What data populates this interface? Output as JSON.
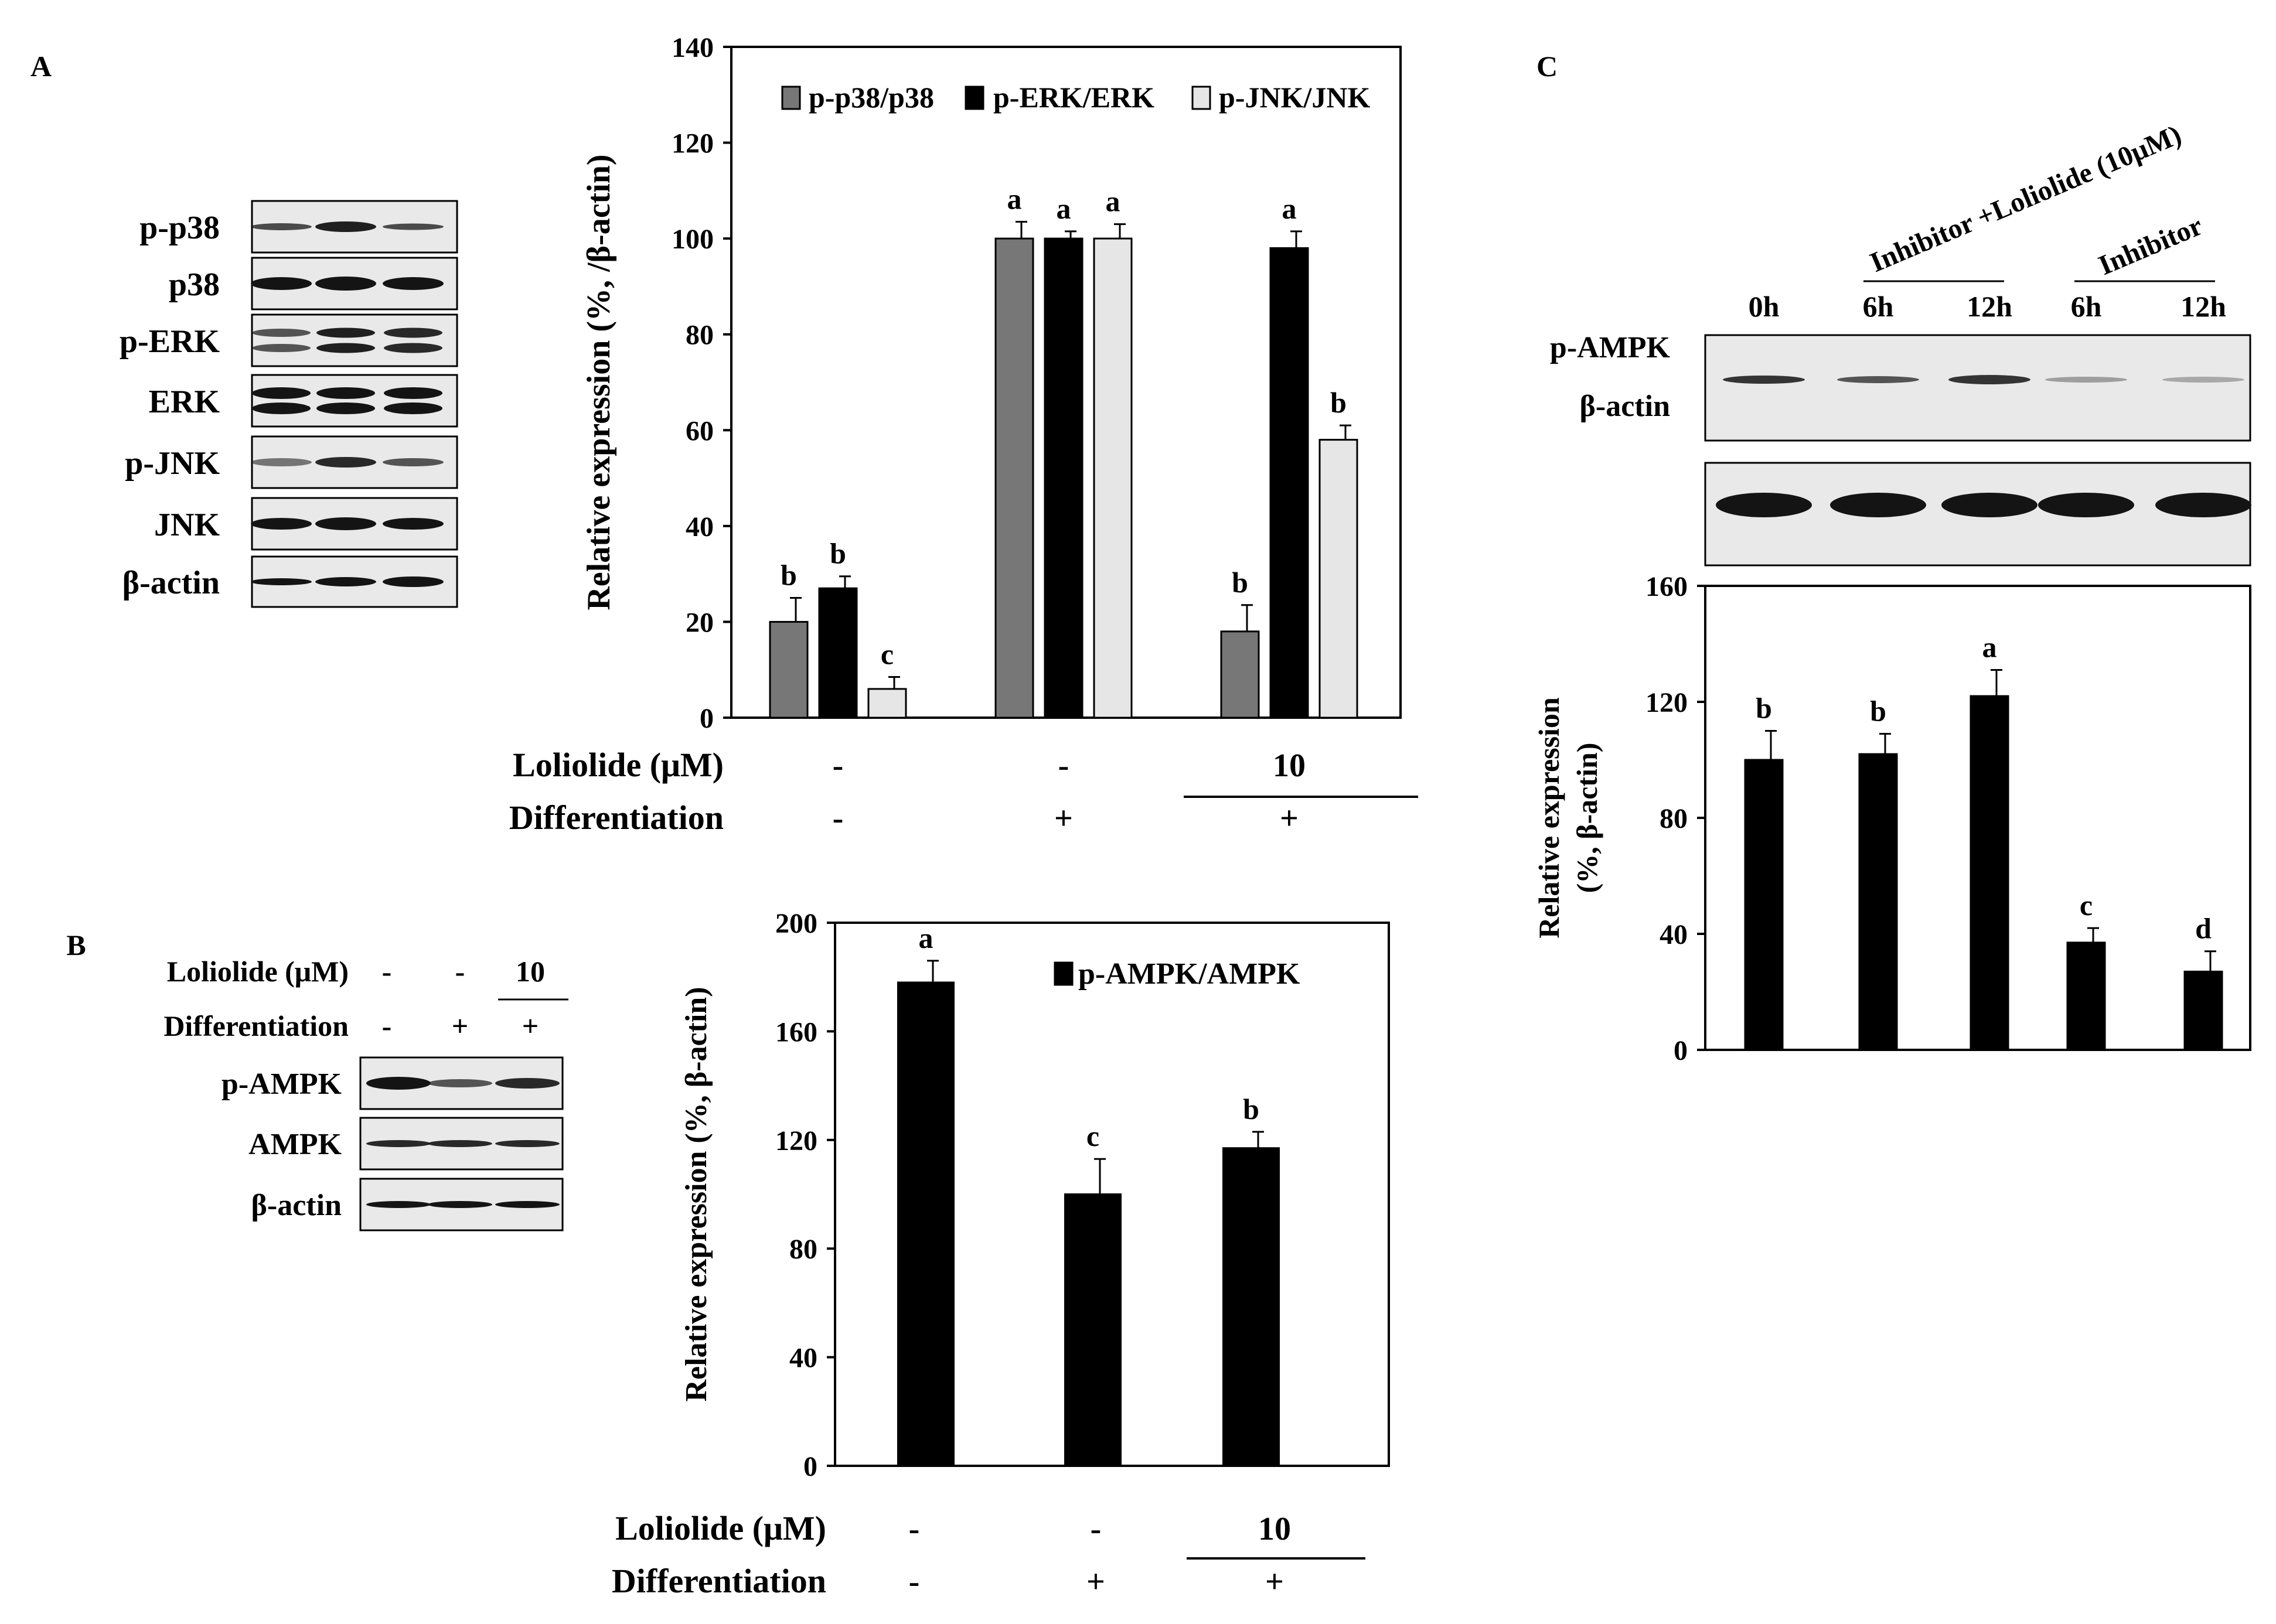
{
  "colors": {
    "black": "#000000",
    "dark_gray": "#777777",
    "light_gray": "#e6e6e6",
    "blot_bg": "#e9e9e9",
    "band": "#141414"
  },
  "panel_a": {
    "label": "A",
    "blot_rows": [
      "p-p38",
      "p38",
      "p-ERK",
      "ERK",
      "p-JNK",
      "JNK",
      "β-actin"
    ],
    "conditions": [
      {
        "name": "Loliolide (μM)",
        "values": [
          "-",
          "-",
          "10"
        ]
      },
      {
        "name": "Differentiation",
        "values": [
          "-",
          "+",
          "+"
        ]
      }
    ]
  },
  "panel_b": {
    "label": "B",
    "blot_rows": [
      "p-AMPK",
      "AMPK",
      "β-actin"
    ],
    "blot_conditions": [
      {
        "name": "Loliolide (μM)",
        "values": [
          "-",
          "-",
          "10"
        ]
      },
      {
        "name": "Differentiation",
        "values": [
          "-",
          "+",
          "+"
        ]
      }
    ],
    "conditions": [
      {
        "name": "Loliolide (μM)",
        "values": [
          "-",
          "-",
          "10"
        ]
      },
      {
        "name": "Differentiation",
        "values": [
          "-",
          "+",
          "+"
        ]
      }
    ]
  },
  "panel_c": {
    "label": "C",
    "blot_rows": [
      "p-AMPK",
      "β-actin"
    ],
    "group_labels": [
      "Inhibitor +Loliolide (10μM)",
      "Inhibitor"
    ],
    "time_labels": [
      "0h",
      "6h",
      "12h",
      "6h",
      "12h"
    ]
  },
  "chart_data": [
    {
      "type": "bar",
      "ylabel": "Relative expression (%, /β-actin)",
      "ylim": [
        0,
        140
      ],
      "yticks": [
        0,
        20,
        40,
        60,
        80,
        100,
        120,
        140
      ],
      "legend_position": "top",
      "series": [
        {
          "name": "p-p38/p38",
          "color": "#777777",
          "values": [
            20,
            100,
            18
          ],
          "errors": [
            5,
            3.5,
            5.5
          ],
          "letters": [
            "b",
            "a",
            "b"
          ]
        },
        {
          "name": "p-ERK/ERK",
          "color": "#000000",
          "values": [
            27,
            100,
            98
          ],
          "errors": [
            2.5,
            1.5,
            3.5
          ],
          "letters": [
            "b",
            "a",
            "a"
          ]
        },
        {
          "name": "p-JNK/JNK",
          "color": "#e6e6e6",
          "values": [
            6,
            100,
            58
          ],
          "errors": [
            2.5,
            3,
            3
          ],
          "letters": [
            "c",
            "a",
            "b"
          ]
        }
      ]
    },
    {
      "type": "bar",
      "ylabel": "Relative expression (%, β-actin)",
      "ylim": [
        0,
        200
      ],
      "yticks": [
        0,
        40,
        80,
        120,
        160,
        200
      ],
      "legend_position": "top-right",
      "series": [
        {
          "name": "p-AMPK/AMPK",
          "color": "#000000",
          "values": [
            178,
            100,
            117
          ],
          "errors": [
            8,
            13,
            6
          ],
          "letters": [
            "a",
            "c",
            "b"
          ]
        }
      ]
    },
    {
      "type": "bar",
      "ylabel": "Relative expression (%, β-actin)",
      "ylim": [
        0,
        160
      ],
      "yticks": [
        0,
        40,
        80,
        120,
        160
      ],
      "categories": [
        "0h",
        "6h",
        "12h",
        "6h",
        "12h"
      ],
      "series": [
        {
          "color": "#000000",
          "values": [
            100,
            102,
            122,
            37,
            27
          ],
          "errors": [
            10,
            7,
            9,
            5,
            7
          ],
          "letters": [
            "b",
            "b",
            "a",
            "c",
            "d"
          ]
        }
      ]
    }
  ]
}
